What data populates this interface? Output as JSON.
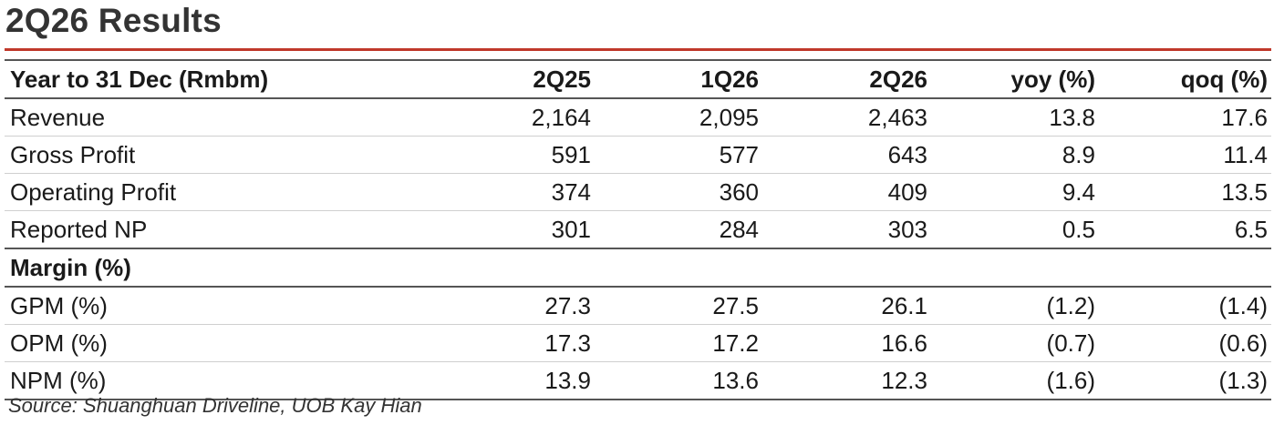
{
  "title": "2Q26 Results",
  "header": {
    "label": "Year to 31 Dec (Rmbm)",
    "columns": [
      "2Q25",
      "1Q26",
      "2Q26",
      "yoy (%)",
      "qoq (%)"
    ]
  },
  "rows": [
    {
      "label": "Revenue",
      "values": [
        "2,164",
        "2,095",
        "2,463",
        "13.8",
        "17.6"
      ]
    },
    {
      "label": "Gross Profit",
      "values": [
        "591",
        "577",
        "643",
        "8.9",
        "11.4"
      ]
    },
    {
      "label": "Operating Profit",
      "values": [
        "374",
        "360",
        "409",
        "9.4",
        "13.5"
      ]
    },
    {
      "label": "Reported NP",
      "values": [
        "301",
        "284",
        "303",
        "0.5",
        "6.5"
      ]
    }
  ],
  "margin_section": {
    "label": "Margin (%)",
    "rows": [
      {
        "label": "GPM (%)",
        "values": [
          "27.3",
          "27.5",
          "26.1",
          "(1.2)",
          "(1.4)"
        ]
      },
      {
        "label": "OPM (%)",
        "values": [
          "17.3",
          "17.2",
          "16.6",
          "(0.7)",
          "(0.6)"
        ]
      },
      {
        "label": "NPM (%)",
        "values": [
          "13.9",
          "13.6",
          "12.3",
          "(1.6)",
          "(1.3)"
        ]
      }
    ]
  },
  "source": "Source: Shuanghuan Driveline, UOB Kay Hian",
  "colors": {
    "accent_rule": "#c0392b",
    "title_text": "#333333"
  }
}
